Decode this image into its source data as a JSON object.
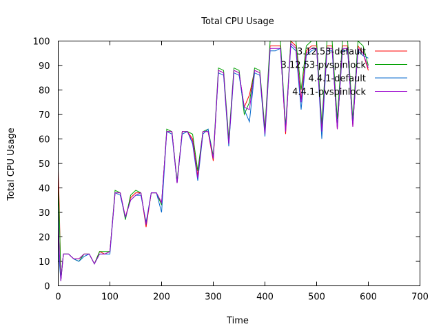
{
  "chart_data": {
    "type": "line",
    "title": "Total CPU Usage",
    "xlabel": "Time",
    "ylabel": "Total CPU Usage",
    "xlim": [
      0,
      700
    ],
    "ylim": [
      0,
      100
    ],
    "x_ticks": [
      "0",
      "100",
      "200",
      "300",
      "400",
      "500",
      "600",
      "700"
    ],
    "y_ticks": [
      "0",
      "10",
      "20",
      "30",
      "40",
      "50",
      "60",
      "70",
      "80",
      "90",
      "100"
    ],
    "grid": false,
    "legend_position": "top-right",
    "series": [
      {
        "name": "3.12.53-default",
        "color": "#ff0000",
        "x": [
          0,
          2,
          5,
          10,
          20,
          30,
          40,
          50,
          60,
          70,
          80,
          90,
          100,
          110,
          120,
          130,
          140,
          150,
          160,
          170,
          180,
          190,
          200,
          210,
          220,
          230,
          240,
          250,
          260,
          270,
          280,
          290,
          300,
          310,
          320,
          330,
          340,
          350,
          360,
          370,
          380,
          390,
          400,
          410,
          420,
          430,
          440,
          450,
          460,
          470,
          480,
          490,
          500,
          510,
          520,
          530,
          540,
          550,
          560,
          570,
          580,
          590,
          600
        ],
        "y": [
          47,
          33,
          2,
          13,
          13,
          11,
          11,
          13,
          13,
          9,
          14,
          13,
          14,
          38,
          38,
          28,
          36,
          38,
          38,
          24,
          38,
          38,
          34,
          63,
          63,
          42,
          63,
          63,
          60,
          45,
          63,
          63,
          51,
          88,
          87,
          58,
          88,
          87,
          73,
          78,
          88,
          87,
          63,
          98,
          98,
          98,
          62,
          100,
          98,
          76,
          96,
          98,
          98,
          64,
          98,
          98,
          64,
          98,
          98,
          65,
          98,
          95,
          88
        ]
      },
      {
        "name": "3.12.53-pvspinlock",
        "color": "#00a000",
        "x": [
          0,
          2,
          5,
          10,
          20,
          30,
          40,
          50,
          60,
          70,
          80,
          90,
          100,
          110,
          120,
          130,
          140,
          150,
          160,
          170,
          180,
          190,
          200,
          210,
          220,
          230,
          240,
          250,
          260,
          270,
          280,
          290,
          300,
          310,
          320,
          330,
          340,
          350,
          360,
          370,
          380,
          390,
          400,
          410,
          420,
          430,
          440,
          450,
          460,
          470,
          480,
          490,
          500,
          510,
          520,
          530,
          540,
          550,
          560,
          570,
          580,
          590,
          600
        ],
        "y": [
          40,
          30,
          3,
          13,
          13,
          11,
          10,
          13,
          13,
          9,
          14,
          14,
          14,
          39,
          38,
          27,
          37,
          39,
          38,
          25,
          38,
          38,
          33,
          64,
          63,
          43,
          63,
          63,
          62,
          47,
          63,
          64,
          53,
          89,
          88,
          60,
          89,
          88,
          70,
          75,
          89,
          88,
          64,
          100,
          100,
          100,
          65,
          100,
          100,
          80,
          98,
          100,
          100,
          66,
          100,
          100,
          68,
          100,
          100,
          68,
          100,
          98,
          90
        ]
      },
      {
        "name": "4.4.1-default",
        "color": "#0066cc",
        "x": [
          0,
          2,
          5,
          10,
          20,
          30,
          40,
          50,
          60,
          70,
          80,
          90,
          100,
          110,
          120,
          130,
          140,
          150,
          160,
          170,
          180,
          190,
          200,
          210,
          220,
          230,
          240,
          250,
          260,
          270,
          280,
          290,
          300,
          310,
          320,
          330,
          340,
          350,
          360,
          370,
          380,
          390,
          400,
          410,
          420,
          430,
          440,
          450,
          460,
          470,
          480,
          490,
          500,
          510,
          520,
          530,
          540,
          550,
          560,
          570,
          580,
          590,
          600
        ],
        "y": [
          33,
          10,
          2,
          13,
          13,
          11,
          10,
          12,
          13,
          9,
          13,
          13,
          13,
          38,
          37,
          28,
          35,
          37,
          37,
          26,
          38,
          38,
          30,
          63,
          62,
          42,
          62,
          63,
          58,
          43,
          62,
          64,
          52,
          87,
          86,
          57,
          87,
          86,
          72,
          67,
          87,
          86,
          61,
          96,
          96,
          97,
          64,
          98,
          96,
          72,
          94,
          96,
          97,
          60,
          96,
          96,
          65,
          96,
          96,
          66,
          96,
          94,
          93
        ]
      },
      {
        "name": "4.4.1-pvspinlock",
        "color": "#9900cc",
        "x": [
          0,
          2,
          5,
          10,
          20,
          30,
          40,
          50,
          60,
          70,
          80,
          90,
          100,
          110,
          120,
          130,
          140,
          150,
          160,
          170,
          180,
          190,
          200,
          210,
          220,
          230,
          240,
          250,
          260,
          270,
          280,
          290,
          300,
          310,
          320,
          330,
          340,
          350,
          360,
          370,
          380,
          390,
          400,
          410,
          420,
          430,
          440,
          450,
          460,
          470,
          480,
          490,
          500,
          510,
          520,
          530,
          540,
          550,
          560,
          570,
          580,
          590,
          600
        ],
        "y": [
          25,
          15,
          2,
          13,
          13,
          11,
          11,
          13,
          13,
          9,
          13,
          13,
          14,
          38,
          38,
          28,
          35,
          37,
          38,
          25,
          38,
          38,
          34,
          63,
          63,
          42,
          63,
          63,
          59,
          44,
          63,
          63,
          52,
          88,
          87,
          58,
          88,
          87,
          73,
          72,
          88,
          87,
          62,
          97,
          97,
          97,
          63,
          99,
          97,
          75,
          95,
          97,
          97,
          63,
          97,
          97,
          64,
          97,
          97,
          65,
          97,
          95,
          89
        ]
      }
    ]
  }
}
